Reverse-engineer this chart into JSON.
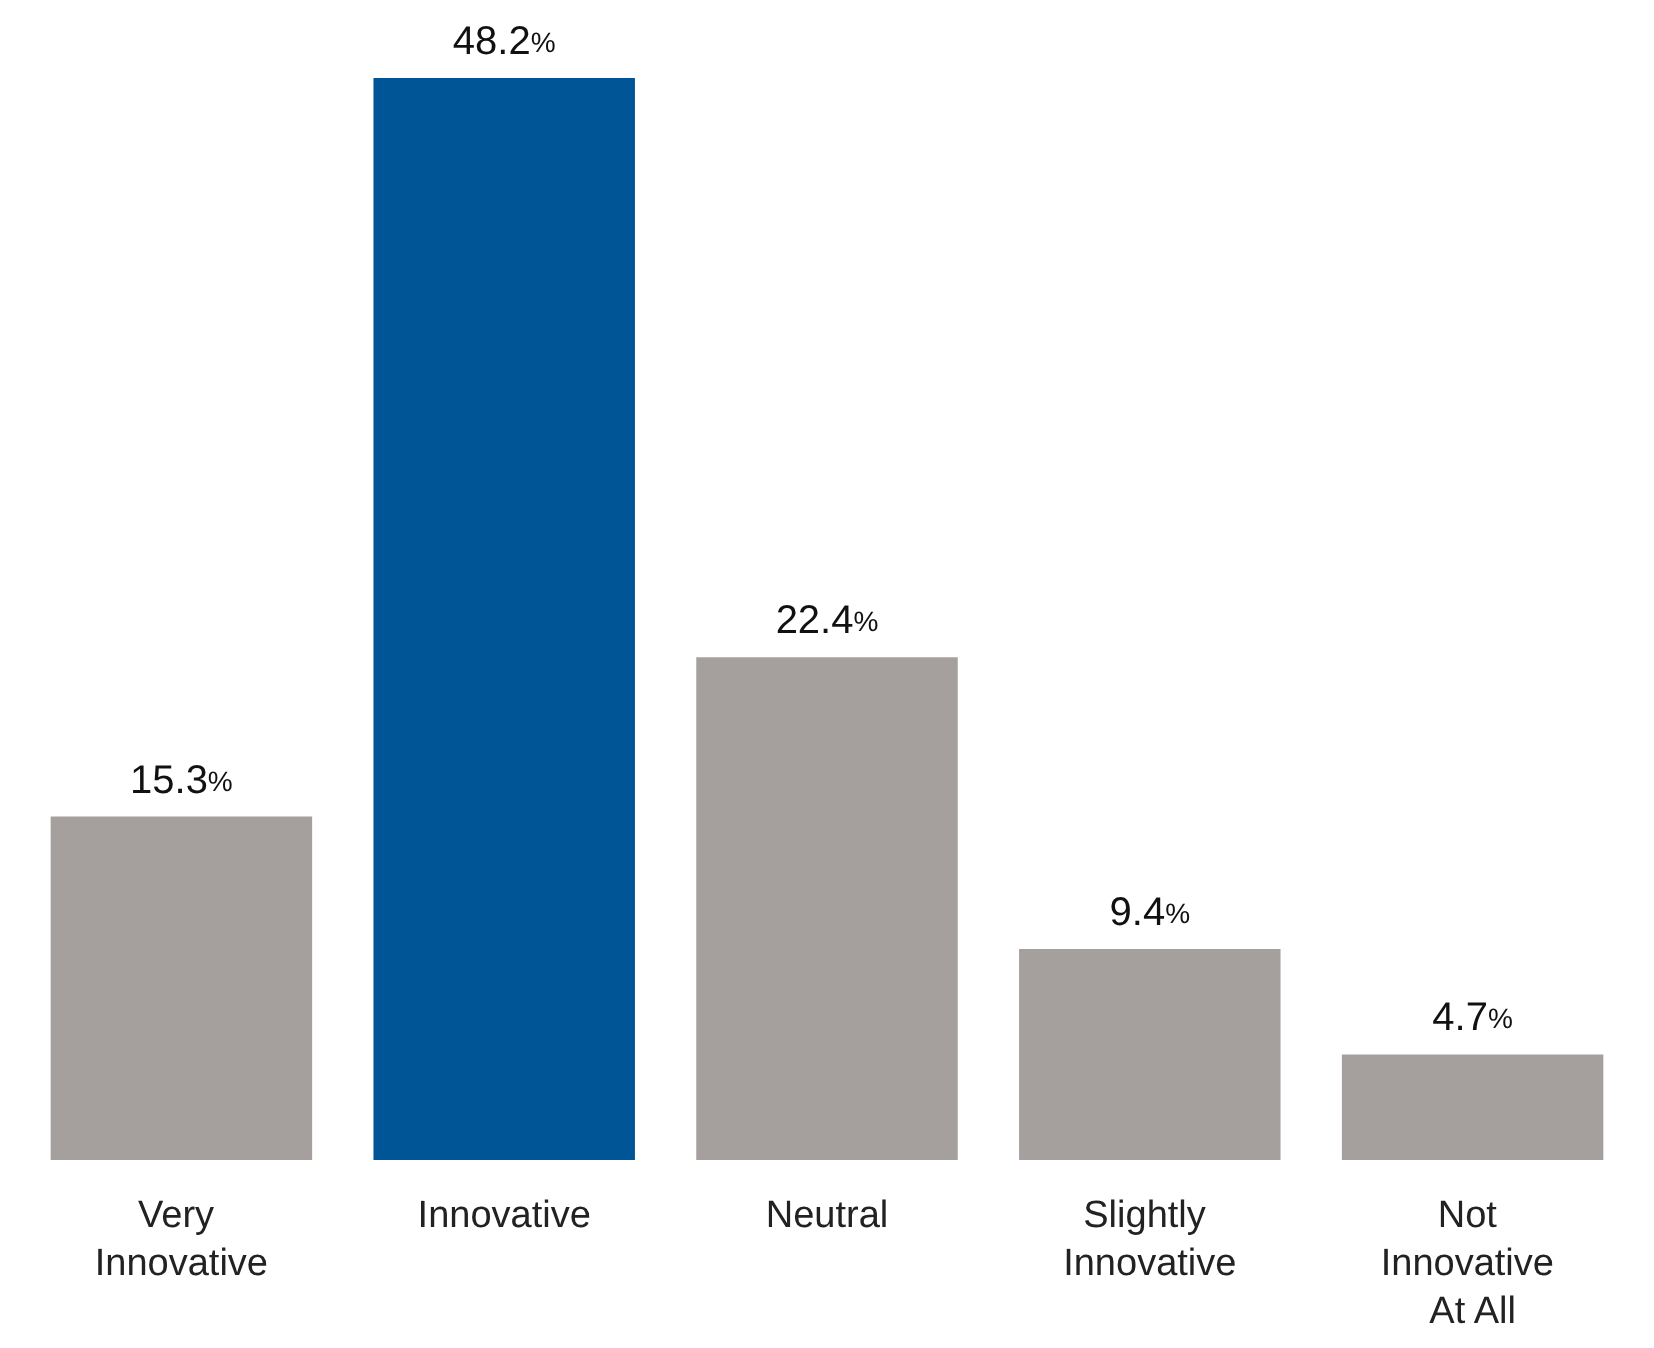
{
  "chart_data": {
    "type": "bar",
    "categories": [
      "Very Innovative",
      "Innovative",
      "Neutral",
      "Slightly Innovative",
      "Not Innovative At All"
    ],
    "values": [
      15.3,
      48.2,
      22.4,
      9.4,
      4.7
    ],
    "colors": [
      "#a5a09d",
      "#005596",
      "#a5a09d",
      "#a5a09d",
      "#a5a09d"
    ],
    "value_labels": [
      "15.3%",
      "48.2%",
      "22.4%",
      "9.4%",
      "4.7%"
    ]
  }
}
